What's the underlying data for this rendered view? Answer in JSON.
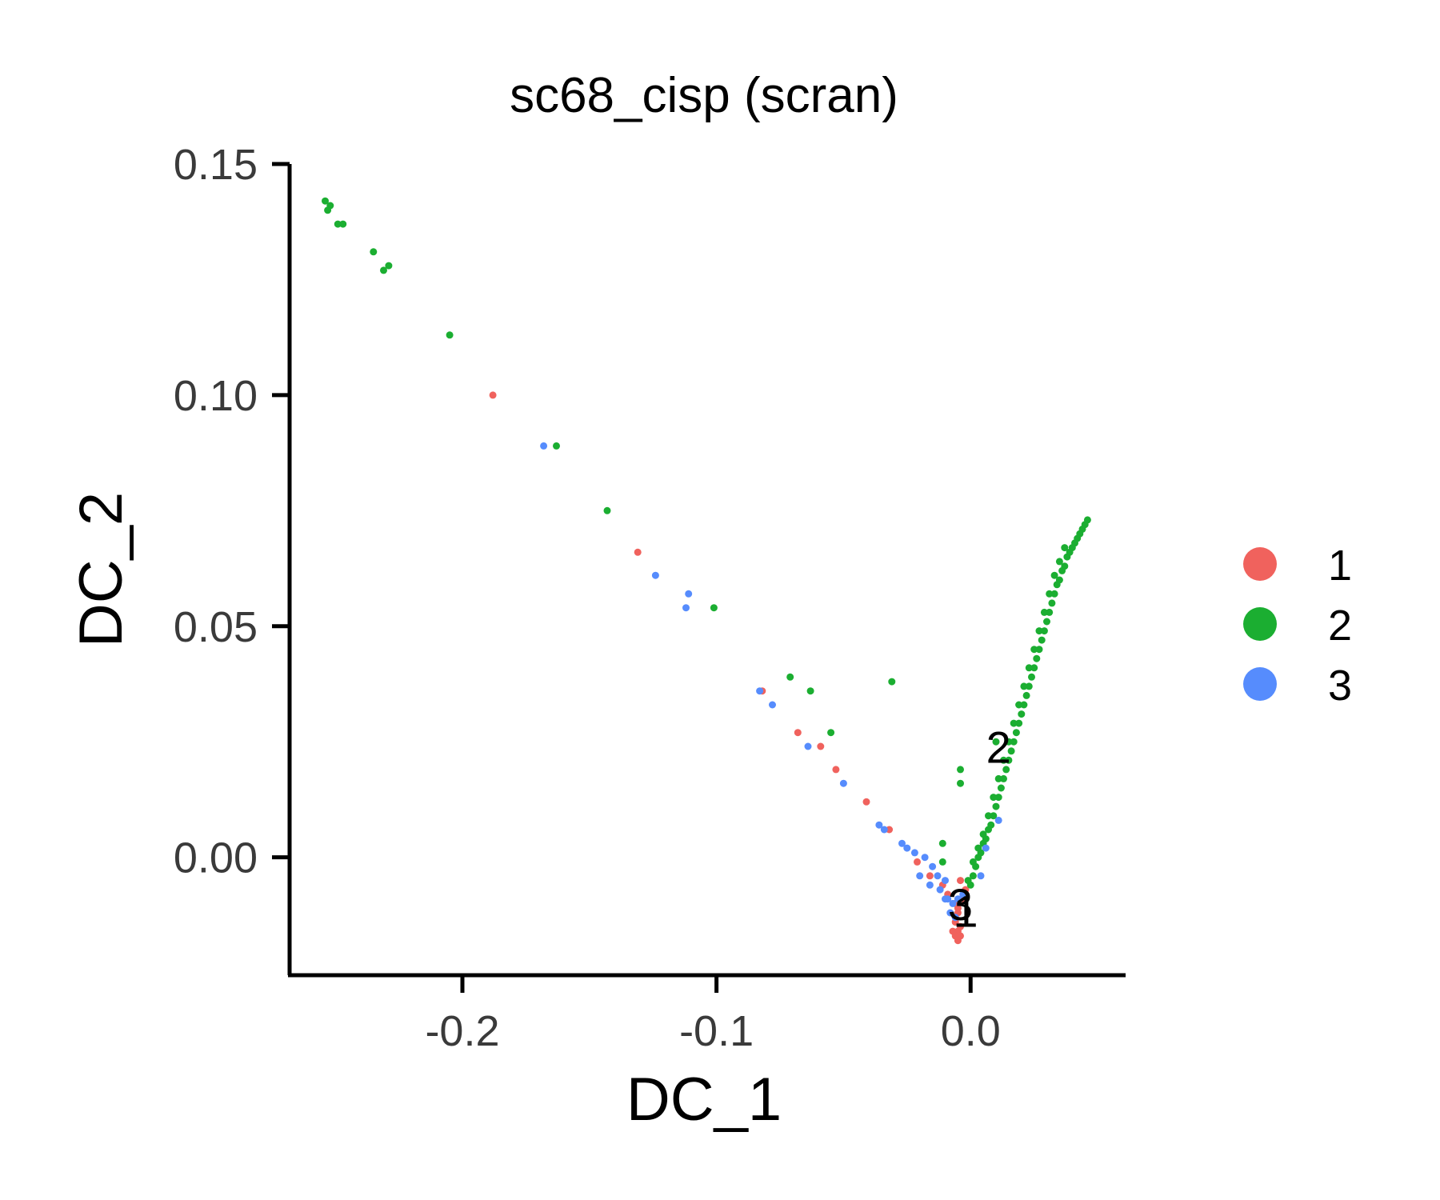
{
  "chart_data": {
    "type": "scatter",
    "title": "sc68_cisp (scran)",
    "xlabel": "DC_1",
    "ylabel": "DC_2",
    "xlim": [
      -0.268,
      0.061
    ],
    "ylim": [
      -0.0255,
      0.15
    ],
    "x_ticks": [
      -0.2,
      -0.1,
      0.0
    ],
    "x_tick_labels": [
      "-0.2",
      "-0.1",
      "0.0"
    ],
    "y_ticks": [
      0.0,
      0.05,
      0.1,
      0.15
    ],
    "y_tick_labels": [
      "0.00",
      "0.05",
      "0.10",
      "0.15"
    ],
    "grid": false,
    "legend_position": "right",
    "colors": {
      "1": "#F0625D",
      "2": "#1BAE31",
      "3": "#568CFD"
    },
    "series": [
      {
        "name": "1",
        "color": "#F0625D",
        "points": [
          [
            -0.188,
            0.1
          ],
          [
            -0.131,
            0.066
          ],
          [
            -0.082,
            0.036
          ],
          [
            -0.068,
            0.027
          ],
          [
            -0.059,
            0.024
          ],
          [
            -0.053,
            0.019
          ],
          [
            -0.041,
            0.012
          ],
          [
            -0.032,
            0.006
          ],
          [
            -0.021,
            -0.001
          ],
          [
            -0.016,
            -0.004
          ],
          [
            -0.011,
            -0.006
          ],
          [
            -0.009,
            -0.008
          ],
          [
            -0.004,
            -0.005
          ],
          [
            -0.002,
            -0.007
          ],
          [
            -0.006,
            -0.01
          ],
          [
            -0.005,
            -0.012
          ],
          [
            -0.006,
            -0.014
          ],
          [
            -0.005,
            -0.016
          ],
          [
            -0.006,
            -0.017
          ],
          [
            -0.005,
            -0.018
          ],
          [
            -0.004,
            -0.015
          ],
          [
            -0.006,
            -0.013
          ],
          [
            -0.005,
            -0.011
          ],
          [
            -0.003,
            -0.009
          ],
          [
            -0.007,
            -0.016
          ],
          [
            -0.004,
            -0.017
          ]
        ]
      },
      {
        "name": "2",
        "color": "#1BAE31",
        "points": [
          [
            -0.254,
            0.142
          ],
          [
            -0.252,
            0.141
          ],
          [
            -0.253,
            0.14
          ],
          [
            -0.249,
            0.137
          ],
          [
            -0.247,
            0.137
          ],
          [
            -0.235,
            0.131
          ],
          [
            -0.229,
            0.128
          ],
          [
            -0.231,
            0.127
          ],
          [
            -0.205,
            0.113
          ],
          [
            -0.163,
            0.089
          ],
          [
            -0.143,
            0.075
          ],
          [
            -0.101,
            0.054
          ],
          [
            -0.071,
            0.039
          ],
          [
            -0.063,
            0.036
          ],
          [
            -0.055,
            0.027
          ],
          [
            -0.031,
            0.038
          ],
          [
            -0.011,
            0.003
          ],
          [
            -0.011,
            -0.001
          ],
          [
            -0.004,
            0.019
          ],
          [
            -0.004,
            0.016
          ],
          [
            0.01,
            0.025
          ],
          [
            0.0,
            -0.006
          ],
          [
            0.002,
            -0.002
          ],
          [
            0.004,
            0.001
          ],
          [
            0.006,
            0.004
          ],
          [
            0.008,
            0.007
          ],
          [
            0.01,
            0.011
          ],
          [
            0.012,
            0.015
          ],
          [
            0.014,
            0.019
          ],
          [
            0.016,
            0.023
          ],
          [
            0.018,
            0.027
          ],
          [
            0.02,
            0.031
          ],
          [
            0.022,
            0.035
          ],
          [
            0.024,
            0.039
          ],
          [
            0.026,
            0.043
          ],
          [
            0.028,
            0.047
          ],
          [
            0.03,
            0.051
          ],
          [
            0.032,
            0.055
          ],
          [
            0.034,
            0.059
          ],
          [
            0.036,
            0.062
          ],
          [
            0.038,
            0.065
          ],
          [
            0.04,
            0.067
          ],
          [
            0.042,
            0.069
          ],
          [
            0.044,
            0.071
          ],
          [
            0.046,
            0.073
          ],
          [
            0.001,
            -0.004
          ],
          [
            0.003,
            0.0
          ],
          [
            0.005,
            0.003
          ],
          [
            0.007,
            0.006
          ],
          [
            0.009,
            0.009
          ],
          [
            0.011,
            0.013
          ],
          [
            0.013,
            0.017
          ],
          [
            0.015,
            0.021
          ],
          [
            0.017,
            0.025
          ],
          [
            0.019,
            0.029
          ],
          [
            0.021,
            0.033
          ],
          [
            0.023,
            0.037
          ],
          [
            0.025,
            0.041
          ],
          [
            0.027,
            0.045
          ],
          [
            0.029,
            0.049
          ],
          [
            0.031,
            0.053
          ],
          [
            0.033,
            0.057
          ],
          [
            0.035,
            0.06
          ],
          [
            0.037,
            0.063
          ],
          [
            0.039,
            0.066
          ],
          [
            0.041,
            0.068
          ],
          [
            0.043,
            0.07
          ],
          [
            0.045,
            0.072
          ],
          [
            0.005,
            0.005
          ],
          [
            0.009,
            0.013
          ],
          [
            0.013,
            0.021
          ],
          [
            0.017,
            0.029
          ],
          [
            0.021,
            0.037
          ],
          [
            0.025,
            0.045
          ],
          [
            0.029,
            0.053
          ],
          [
            0.033,
            0.061
          ],
          [
            0.037,
            0.067
          ],
          [
            0.011,
            0.017
          ],
          [
            0.015,
            0.025
          ],
          [
            0.019,
            0.033
          ],
          [
            0.023,
            0.041
          ],
          [
            0.027,
            0.049
          ],
          [
            0.031,
            0.057
          ],
          [
            0.035,
            0.064
          ],
          [
            0.003,
            0.002
          ],
          [
            0.007,
            0.009
          ],
          [
            0.001,
            -0.001
          ],
          [
            -0.001,
            -0.005
          ]
        ]
      },
      {
        "name": "3",
        "color": "#568CFD",
        "points": [
          [
            -0.168,
            0.089
          ],
          [
            -0.124,
            0.061
          ],
          [
            -0.111,
            0.057
          ],
          [
            -0.112,
            0.054
          ],
          [
            -0.083,
            0.036
          ],
          [
            -0.078,
            0.033
          ],
          [
            -0.064,
            0.024
          ],
          [
            -0.05,
            0.016
          ],
          [
            -0.036,
            0.007
          ],
          [
            -0.034,
            0.006
          ],
          [
            -0.027,
            0.003
          ],
          [
            -0.025,
            0.002
          ],
          [
            -0.022,
            0.001
          ],
          [
            -0.018,
            0.0
          ],
          [
            -0.015,
            -0.002
          ],
          [
            -0.013,
            -0.004
          ],
          [
            -0.01,
            -0.005
          ],
          [
            -0.012,
            -0.007
          ],
          [
            -0.009,
            -0.009
          ],
          [
            -0.007,
            -0.01
          ],
          [
            -0.008,
            -0.012
          ],
          [
            -0.006,
            -0.013
          ],
          [
            -0.01,
            -0.009
          ],
          [
            -0.005,
            -0.009
          ],
          [
            -0.003,
            -0.008
          ],
          [
            0.004,
            -0.004
          ],
          [
            0.006,
            0.002
          ],
          [
            0.011,
            0.008
          ],
          [
            -0.02,
            -0.004
          ],
          [
            -0.016,
            -0.006
          ]
        ]
      }
    ],
    "cluster_labels": [
      {
        "text": "2",
        "x": 0.011,
        "y": 0.023
      },
      {
        "text": "3",
        "x": -0.004,
        "y": -0.011
      },
      {
        "text": "1",
        "x": -0.002,
        "y": -0.0125
      }
    ]
  },
  "legend": {
    "items": [
      {
        "label": "1",
        "color": "#F0625D"
      },
      {
        "label": "2",
        "color": "#1BAE31"
      },
      {
        "label": "3",
        "color": "#568CFD"
      }
    ]
  }
}
